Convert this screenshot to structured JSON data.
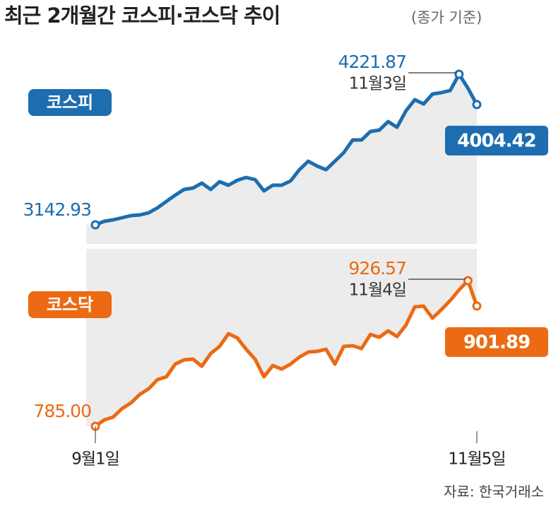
{
  "title": "최근 2개월간 코스피·코스닥 추이",
  "subtitle": "(종가 기준)",
  "source": "자료: 한국거래소",
  "chart_data": [
    {
      "type": "line",
      "annotation": "11월3일",
      "series": [
        {
          "name": "코스피",
          "color": "#1d6db0",
          "values": [
            3142.93,
            3168.3,
            3178.4,
            3193.6,
            3208.8,
            3213.8,
            3229.0,
            3264.5,
            3310.1,
            3355.7,
            3396.2,
            3406.3,
            3441.8,
            3396.2,
            3451.9,
            3426.6,
            3462.0,
            3482.3,
            3467.1,
            3386.0,
            3426.6,
            3426.6,
            3457.0,
            3538.0,
            3598.8,
            3563.5,
            3538.0,
            3598.8,
            3659.6,
            3750.7,
            3750.7,
            3811.5,
            3821.6,
            3882.4,
            3841.9,
            3958.4,
            4039.4,
            4009.0,
            4079.9,
            4090.0,
            4105.2,
            4221.87,
            4121.74,
            4004.42
          ]
        }
      ]
    },
    {
      "type": "line",
      "annotation": "11월4일",
      "categories": [
        "9월1일",
        null,
        null,
        null,
        null,
        null,
        null,
        null,
        null,
        null,
        null,
        null,
        null,
        null,
        null,
        null,
        null,
        null,
        null,
        null,
        null,
        null,
        null,
        null,
        null,
        null,
        null,
        null,
        null,
        null,
        null,
        null,
        null,
        null,
        null,
        null,
        null,
        null,
        null,
        null,
        null,
        null,
        null,
        "11월5일"
      ],
      "series": [
        {
          "name": "코스닥",
          "color": "#ec6a13",
          "values": [
            785.0,
            791.18,
            793.93,
            802.18,
            807.67,
            815.92,
            821.41,
            830.34,
            833.09,
            845.46,
            849.58,
            850.27,
            843.4,
            855.76,
            862.63,
            875.0,
            870.88,
            859.88,
            850.27,
            833.09,
            844.08,
            840.65,
            845.46,
            852.33,
            857.14,
            857.82,
            859.88,
            845.46,
            862.63,
            863.32,
            860.57,
            874.31,
            871.56,
            877.75,
            872.25,
            883.24,
            901.1,
            901.79,
            890.11,
            898.36,
            907.29,
            917.59,
            926.57,
            901.89
          ],
          "value_labels": [
            "785.00",
            null,
            null,
            null,
            null,
            null,
            null,
            null,
            null,
            null,
            null,
            null,
            null,
            null,
            null,
            null,
            null,
            null,
            null,
            null,
            null,
            null,
            null,
            null,
            null,
            null,
            null,
            null,
            null,
            null,
            null,
            null,
            null,
            null,
            null,
            null,
            null,
            null,
            null,
            null,
            null,
            null,
            "926.57",
            "901.89"
          ]
        }
      ]
    }
  ]
}
